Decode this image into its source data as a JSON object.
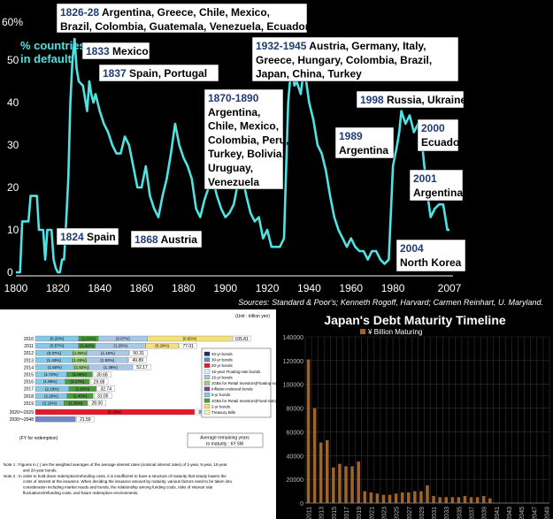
{
  "chart_data": [
    {
      "type": "line",
      "ylabel": "% countries in default",
      "y_unit_label": "60%",
      "ylim": [
        0,
        60
      ],
      "xlim": [
        1800,
        2007
      ],
      "yticks": [
        "0",
        "10",
        "20",
        "30",
        "40",
        "50"
      ],
      "xticks": [
        "1800",
        "1820",
        "1840",
        "1860",
        "1880",
        "1900",
        "1920",
        "1940",
        "1960",
        "1980",
        "2007"
      ],
      "grid": false,
      "line_color": "#4fe3e3",
      "x": [
        1800,
        1801,
        1802,
        1803,
        1804,
        1805,
        1806,
        1807,
        1808,
        1809,
        1810,
        1811,
        1812,
        1813,
        1814,
        1815,
        1816,
        1817,
        1818,
        1819,
        1820,
        1821,
        1822,
        1823,
        1824,
        1825,
        1826,
        1827,
        1828,
        1829,
        1830,
        1832,
        1834,
        1835,
        1836,
        1837,
        1838,
        1840,
        1842,
        1844,
        1846,
        1848,
        1850,
        1852,
        1854,
        1856,
        1858,
        1860,
        1862,
        1864,
        1866,
        1868,
        1870,
        1872,
        1874,
        1876,
        1878,
        1880,
        1882,
        1884,
        1886,
        1888,
        1890,
        1892,
        1894,
        1896,
        1898,
        1900,
        1902,
        1904,
        1906,
        1908,
        1910,
        1912,
        1914,
        1916,
        1918,
        1920,
        1922,
        1924,
        1926,
        1928,
        1930,
        1931,
        1932,
        1933,
        1934,
        1936,
        1937,
        1938,
        1940,
        1942,
        1944,
        1946,
        1948,
        1950,
        1952,
        1954,
        1956,
        1958,
        1960,
        1962,
        1964,
        1966,
        1968,
        1970,
        1972,
        1974,
        1976,
        1978,
        1980,
        1982,
        1983,
        1984,
        1986,
        1988,
        1990,
        1992,
        1994,
        1996,
        1998,
        2000,
        2002,
        2004,
        2006,
        2007
      ],
      "values": [
        0,
        0,
        0,
        12,
        12,
        12,
        12,
        18,
        18,
        18,
        18,
        10,
        10,
        10,
        3,
        10,
        10,
        10,
        3,
        1,
        0,
        0,
        3,
        3,
        12,
        22,
        40,
        50,
        55,
        48,
        45,
        44,
        38,
        45,
        42,
        40,
        42,
        38,
        35,
        33,
        30,
        28,
        28,
        32,
        30,
        25,
        20,
        20,
        25,
        18,
        15,
        13,
        18,
        22,
        28,
        35,
        30,
        27,
        25,
        22,
        15,
        13,
        17,
        20,
        22,
        18,
        15,
        13,
        14,
        16,
        21,
        23,
        18,
        14,
        12,
        13,
        8,
        10,
        6,
        6,
        6,
        8,
        40,
        46,
        47,
        44,
        45,
        42,
        46,
        47,
        40,
        36,
        30,
        28,
        24,
        18,
        13,
        10,
        8,
        6,
        8,
        6,
        5,
        5,
        3,
        5,
        5,
        3,
        2,
        3,
        25,
        30,
        33,
        38,
        35,
        37,
        33,
        35,
        30,
        20,
        13,
        15,
        16,
        16,
        10,
        10
      ],
      "annotations": [
        {
          "year": "1826-28",
          "text": [
            "Argentina, Greece, Chile, Mexico,",
            "Brazil, Colombia, Guatemala, Venezuela, Ecuador"
          ]
        },
        {
          "year": "1833",
          "text": [
            "Mexico"
          ]
        },
        {
          "year": "1837",
          "text": [
            "Spain, Portugal"
          ]
        },
        {
          "year": "1824",
          "text": [
            "Spain"
          ]
        },
        {
          "year": "1868",
          "text": [
            "Austria"
          ]
        },
        {
          "year": "1870-1890",
          "text": [
            "Argentina,",
            "Chile, Mexico,",
            "Colombia, Peru,",
            "Turkey, Bolivia,",
            "Uruguay,",
            "Venezuela"
          ]
        },
        {
          "year": "1932-1945",
          "text": [
            "Austria, Germany, Italy,",
            "Greece, Hungary, Colombia, Brazil,",
            "Japan, China, Turkey"
          ]
        },
        {
          "year": "1998",
          "text": [
            "Russia, Ukraine"
          ]
        },
        {
          "year": "1989",
          "text": [
            "Argentina"
          ]
        },
        {
          "year": "2000",
          "text": [
            "Ecuador"
          ]
        },
        {
          "year": "2001",
          "text": [
            "Argentina"
          ]
        },
        {
          "year": "2004",
          "text": [
            "North Korea"
          ]
        }
      ],
      "source": "Sources: Standard & Poor's; Kenneth Rogoff, Harvard; Carmen Reinhart, U. Maryland."
    },
    {
      "type": "bar",
      "unit": "(Unit : trillion yen)",
      "categories": [
        "2010",
        "2011",
        "2012",
        "2013",
        "2014",
        "2015",
        "2016",
        "2017",
        "2018",
        "2019",
        "2020～2029",
        "2030～2048"
      ],
      "values": [
        105.81,
        77.01,
        50.31,
        49.89,
        52.17,
        30.68,
        29.08,
        32.74,
        31.05,
        28.0,
        85.55,
        21.59
      ],
      "rate_labels": [
        [
          "(0.20%)",
          "(1.01%)",
          "(0.87%)",
          "(0.65%)"
        ],
        [
          "(0.57%)",
          "(1.42%)",
          "(1.26%)",
          "(0.29%)"
        ],
        [
          "(0.37%)",
          "(1.05%)",
          "(1.10%)"
        ],
        [
          "(1.43%)",
          "(1.26%)",
          "(1.50%)"
        ],
        [
          "(1.50%)",
          "(1.52%)",
          "(1.39%)"
        ],
        [
          "(1.72%)",
          "(1.00%)"
        ],
        [
          "(1.96%)",
          "(1.17%)"
        ],
        [
          "(2.19%)",
          "(1.63%)"
        ],
        [
          "(2.20%)",
          "(1.40%)"
        ],
        [
          "(2.16%)",
          "(1.39%)"
        ],
        [
          "(0.29%)"
        ],
        []
      ],
      "legend": [
        "40-yr bonds",
        "30-yr bonds",
        "20-yr bonds",
        "15-year Floating-rate bonds",
        "15-yr bonds",
        "JGBs for Retail Investors(Floating-rate)",
        "Inflation-Indexed bonds",
        "5-yr bonds",
        "JGBs for Retail Investors(Fixed-rate)",
        "2-yr bonds",
        "Treasury Bills"
      ],
      "legend_colors": [
        "#1b2f7a",
        "#6f86c9",
        "#e5192a",
        "#dfe8f5",
        "#a8c8e8",
        "#9ad07c",
        "#7d3f98",
        "#86c8e8",
        "#4c9a3c",
        "#f6e07a",
        "#f7f1b8"
      ],
      "footer_left": "(FY for redemption)",
      "footer_box": [
        "Average remaining years",
        "to maturity : 6Y 5M"
      ],
      "notes": [
        "Note 1 : Figures in ( ) are the weighted averages of the average interest rates (nominal interest rates) of 2-year,  5-year, 10-year",
        "and 20-year bonds.",
        "Note 2 : In order to hold down redemption/refunding costs, it is insufficient to have a structure of maturity that simply lowers the",
        "costs of interest at the issuance. When deciding the issuance amount by maturity, various factors need to be taken into",
        "consideration including market needs and trends, the relationship among funding costs, risks of interest rate",
        "fluctuations/refunding costs, and future redemption environments."
      ]
    },
    {
      "type": "bar",
      "title": "Japan's Debt Maturity Timeline",
      "series": [
        {
          "name": "¥ Billion Maturing",
          "color": "#a0642a"
        }
      ],
      "ylim": [
        0,
        140000
      ],
      "yticks": [
        "0",
        "20000",
        "40000",
        "60000",
        "80000",
        "100000",
        "120000",
        "140000"
      ],
      "xticks": [
        "2011",
        "2013",
        "2015",
        "2017",
        "2019",
        "2021",
        "2023",
        "2025",
        "2027",
        "2029",
        "2031",
        "2033",
        "2035",
        "2037",
        "2039",
        "2041",
        "2043",
        "2045",
        "2047",
        "2049"
      ],
      "categories_start": 2011,
      "values": [
        121000,
        80000,
        51000,
        53000,
        30000,
        33000,
        31000,
        31000,
        35000,
        10000,
        9000,
        8000,
        7000,
        7000,
        8000,
        9000,
        9000,
        10000,
        10000,
        15000,
        6000,
        5000,
        5000,
        5000,
        5000,
        6000,
        5000,
        5000,
        6000,
        4000,
        0,
        0,
        0,
        0,
        0,
        0,
        0,
        0,
        0
      ]
    }
  ]
}
